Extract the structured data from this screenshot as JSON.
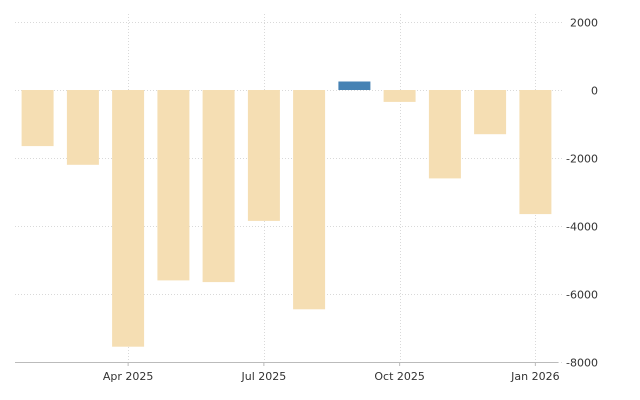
{
  "chart_data": {
    "type": "bar",
    "title": "",
    "xlabel": "",
    "ylabel": "",
    "ylim": [
      -8000,
      2000
    ],
    "yticks": [
      2000,
      0,
      -2000,
      -4000,
      -6000,
      -8000
    ],
    "grid": true,
    "x_tick_labels": [
      {
        "label": "Apr 2025",
        "x": 2.5
      },
      {
        "label": "Jul 2025",
        "x": 5.5
      },
      {
        "label": "Oct 2025",
        "x": 8.5
      },
      {
        "label": "Jan 2026",
        "x": 11.5
      }
    ],
    "values": [
      -1650,
      -2200,
      -7550,
      -5600,
      -5650,
      -3850,
      -6450,
      250,
      -350,
      -2600,
      -1300,
      -3650
    ],
    "colors": {
      "negative": "#f5deb3",
      "positive": "#4682b4",
      "grid": "#d9d9d9",
      "text": "#333333"
    }
  }
}
